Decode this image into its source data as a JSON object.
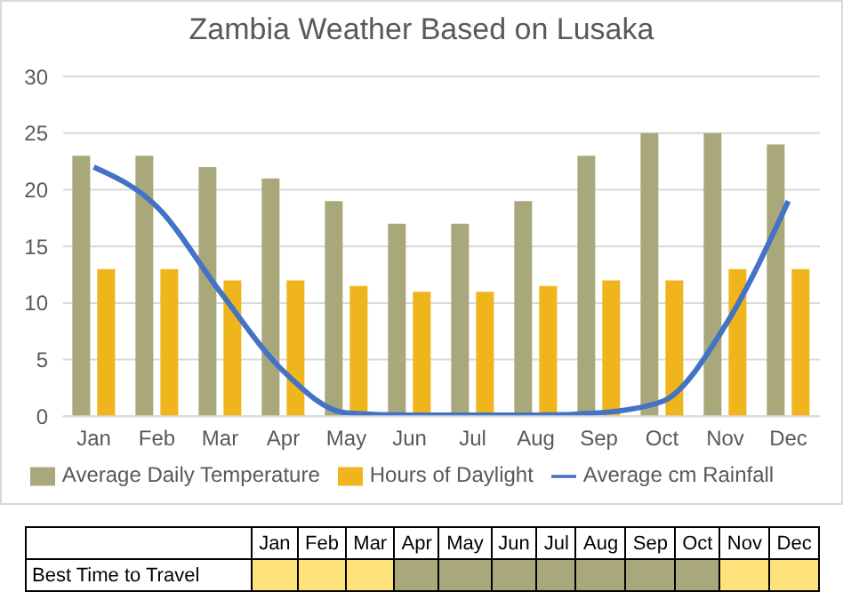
{
  "chart_data": [
    {
      "type": "bar",
      "title": "Zambia Weather Based on Lusaka",
      "categories": [
        "Jan",
        "Feb",
        "Mar",
        "Apr",
        "May",
        "Jun",
        "Jul",
        "Aug",
        "Sep",
        "Oct",
        "Nov",
        "Dec"
      ],
      "series": [
        {
          "name": "Average Daily Temperature",
          "color": "#a8a87a",
          "values": [
            23,
            23,
            22,
            21,
            19,
            17,
            17,
            19,
            23,
            25,
            25,
            24
          ]
        },
        {
          "name": "Hours of Daylight",
          "color": "#f0b41c",
          "values": [
            13,
            13,
            12,
            12,
            11.5,
            11,
            11,
            11.5,
            12,
            12,
            13,
            13
          ]
        },
        {
          "name": "Average cm Rainfall",
          "type": "line",
          "color": "#4472c4",
          "marker": "none",
          "values": [
            22,
            18.5,
            11,
            4,
            0.3,
            0.1,
            0.1,
            0.1,
            0.3,
            1.3,
            8,
            19
          ]
        }
      ],
      "ylim": [
        0,
        30
      ],
      "yticks": [
        0,
        5,
        10,
        15,
        20,
        25,
        30
      ],
      "grid": "y",
      "legend": "bottom"
    },
    {
      "type": "other",
      "categories": [
        "Jan",
        "Feb",
        "Mar",
        "Apr",
        "May",
        "Jun",
        "Jul",
        "Aug",
        "Sep",
        "Oct",
        "Nov",
        "Dec"
      ],
      "y_categories": [
        "Best Time to Travel"
      ],
      "colors": [
        "#fde37a",
        "#fde37a",
        "#fde37a",
        "#a8a87a",
        "#a8a87a",
        "#a8a87a",
        "#a8a87a",
        "#a8a87a",
        "#a8a87a",
        "#a8a87a",
        "#fde37a",
        "#fde37a"
      ]
    }
  ]
}
